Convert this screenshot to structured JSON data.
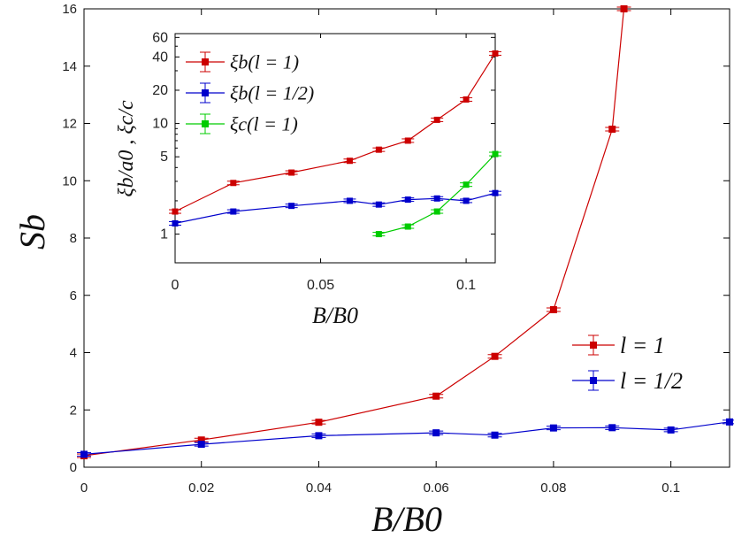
{
  "chart_data": [
    {
      "type": "line",
      "panel": "main",
      "xlabel": "B/B0",
      "ylabel": "Sb",
      "xlim": [
        0,
        0.11
      ],
      "ylim": [
        0,
        16
      ],
      "xticks": [
        0,
        0.02,
        0.04,
        0.06,
        0.08,
        0.1
      ],
      "xtick_labels": [
        "0",
        "0.02",
        "0.04",
        "0.06",
        "0.08",
        "0.1"
      ],
      "yticks": [
        0,
        2,
        4,
        6,
        8,
        10,
        12,
        14,
        16
      ],
      "ytick_labels": [
        "0",
        "2",
        "4",
        "6",
        "8",
        "10",
        "12",
        "14",
        "16"
      ],
      "legend_position": "bottom-right",
      "series": [
        {
          "name": "l = 1",
          "color": "#cc0000",
          "x": [
            0,
            0.02,
            0.04,
            0.06,
            0.07,
            0.08,
            0.09,
            0.092
          ],
          "y": [
            0.4,
            0.95,
            1.57,
            2.48,
            3.87,
            5.5,
            11.8,
            16.0
          ]
        },
        {
          "name": "l = 1/2",
          "color": "#0000cc",
          "x": [
            0,
            0.02,
            0.04,
            0.06,
            0.07,
            0.08,
            0.09,
            0.1,
            0.11
          ],
          "y": [
            0.45,
            0.8,
            1.1,
            1.2,
            1.12,
            1.37,
            1.38,
            1.3,
            1.58
          ]
        }
      ]
    },
    {
      "type": "line",
      "panel": "inset",
      "yscale": "log",
      "xlabel": "B/B0",
      "ylabel": "ξb/a0 , ξc/c",
      "xlim": [
        0,
        0.11
      ],
      "ylim": [
        0.55,
        65
      ],
      "xticks": [
        0,
        0.05,
        0.1
      ],
      "xtick_labels": [
        "0",
        "0.05",
        "0.1"
      ],
      "yticks": [
        1,
        5,
        10,
        20,
        40,
        60
      ],
      "ytick_labels": [
        "1",
        "5",
        "10",
        "20",
        "40",
        "60"
      ],
      "legend_position": "top-left",
      "series": [
        {
          "name": "ξb(l = 1)",
          "color": "#cc0000",
          "x": [
            0,
            0.02,
            0.04,
            0.06,
            0.07,
            0.08,
            0.09,
            0.1,
            0.11
          ],
          "y": [
            1.6,
            2.9,
            3.6,
            4.6,
            5.8,
            7.0,
            10.8,
            16.5,
            43
          ]
        },
        {
          "name": "ξb(l = 1/2)",
          "color": "#0000cc",
          "x": [
            0,
            0.02,
            0.04,
            0.06,
            0.07,
            0.08,
            0.09,
            0.1,
            0.11
          ],
          "y": [
            1.25,
            1.6,
            1.8,
            2.0,
            1.85,
            2.05,
            2.1,
            2.0,
            2.35
          ]
        },
        {
          "name": "ξc(l = 1)",
          "color": "#00cc00",
          "x": [
            0.07,
            0.08,
            0.09,
            0.1,
            0.11
          ],
          "y": [
            1.0,
            1.17,
            1.6,
            2.8,
            5.3
          ]
        }
      ]
    }
  ]
}
